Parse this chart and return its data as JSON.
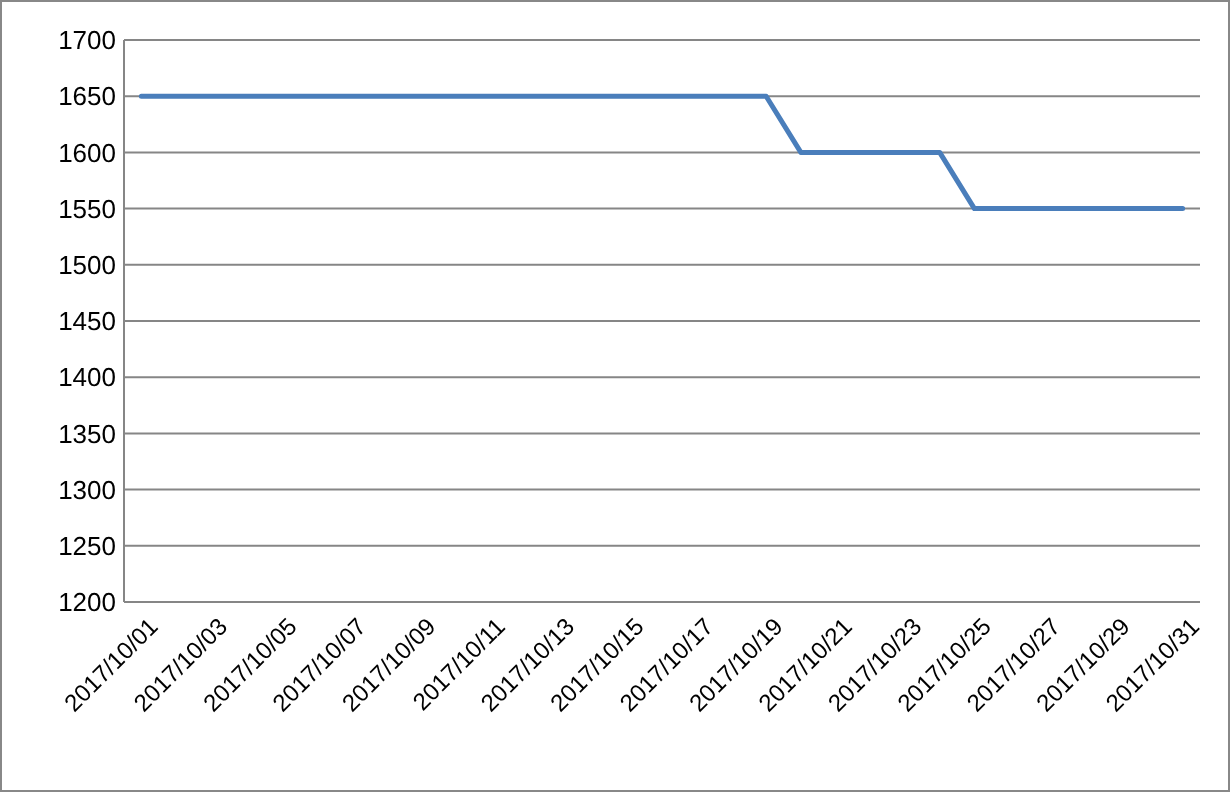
{
  "chart_data": {
    "type": "line",
    "categories": [
      "2017/10/01",
      null,
      "2017/10/03",
      null,
      "2017/10/05",
      null,
      "2017/10/07",
      null,
      "2017/10/09",
      null,
      "2017/10/11",
      null,
      "2017/10/13",
      null,
      "2017/10/15",
      null,
      "2017/10/17",
      null,
      "2017/10/19",
      null,
      "2017/10/21",
      null,
      "2017/10/23",
      null,
      "2017/10/25",
      null,
      "2017/10/27",
      null,
      "2017/10/29",
      null,
      "2017/10/31"
    ],
    "series": [
      {
        "color": "#4a7ebb",
        "values": [
          1650,
          1650,
          1650,
          1650,
          1650,
          1650,
          1650,
          1650,
          1650,
          1650,
          1650,
          1650,
          1650,
          1650,
          1650,
          1650,
          1650,
          1650,
          1650,
          1600,
          1600,
          1600,
          1600,
          1600,
          1550,
          1550,
          1550,
          1550,
          1550,
          1550,
          1550
        ]
      }
    ],
    "ylim": [
      1200,
      1700
    ],
    "yticks": [
      1200,
      1250,
      1300,
      1350,
      1400,
      1450,
      1500,
      1550,
      1600,
      1650,
      1700
    ],
    "grid": "y",
    "marker": "none",
    "line_style": "solid"
  }
}
